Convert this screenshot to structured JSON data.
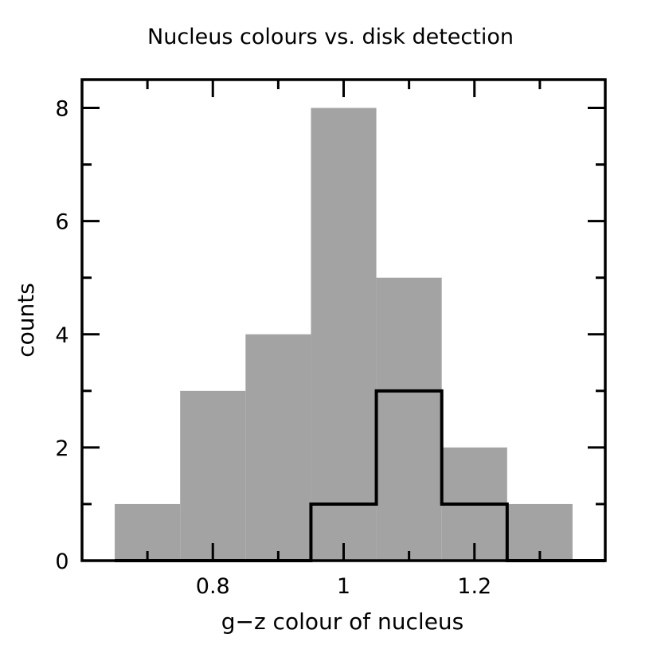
{
  "chart_data": {
    "type": "histogram",
    "title": "Nucleus colours vs. disk detection",
    "xlabel": "g−z colour of nucleus",
    "ylabel": "counts",
    "xlim": [
      0.6,
      1.4
    ],
    "ylim": [
      0,
      8.5
    ],
    "x_ticks": [
      0.8,
      1.0,
      1.2
    ],
    "x_tick_labels": [
      "0.8",
      "1",
      "1.2"
    ],
    "y_ticks": [
      0,
      2,
      4,
      6,
      8
    ],
    "y_tick_labels": [
      "0",
      "2",
      "4",
      "6",
      "8"
    ],
    "bin_edges": [
      0.65,
      0.75,
      0.85,
      0.95,
      1.05,
      1.15,
      1.25,
      1.35
    ],
    "series": [
      {
        "style": "filled",
        "color": "#a3a3a3",
        "values": [
          1,
          3,
          4,
          8,
          5,
          2,
          1
        ]
      },
      {
        "style": "step",
        "color": "#000000",
        "values": [
          0,
          0,
          0,
          1,
          3,
          1,
          0
        ]
      }
    ]
  }
}
